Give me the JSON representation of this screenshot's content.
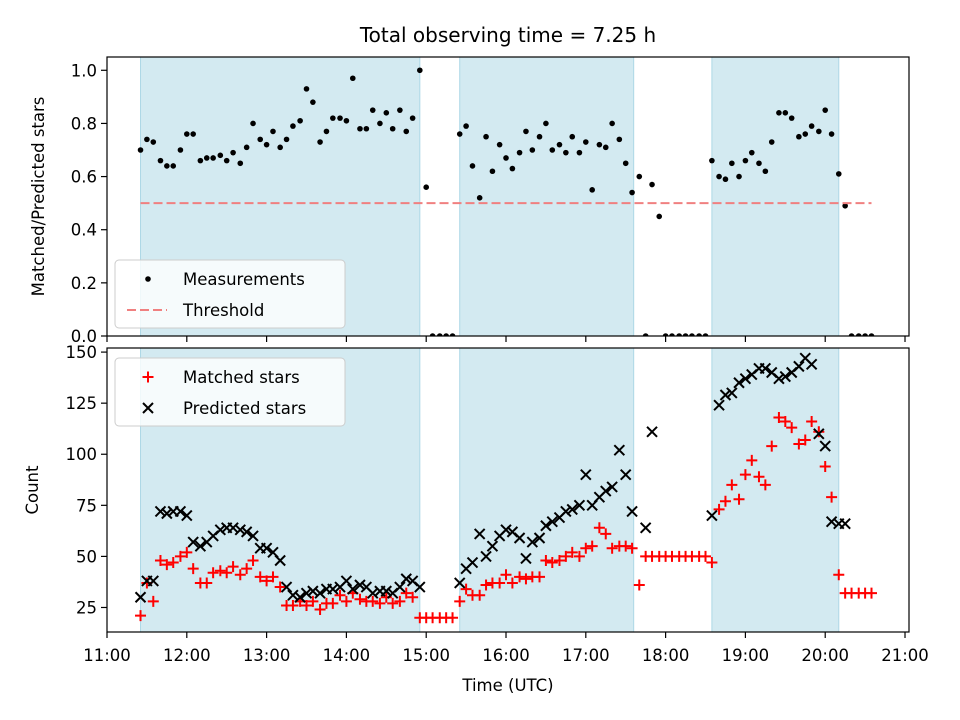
{
  "chart_data": {
    "type": "scatter",
    "title": "Total observing time = 7.25 h",
    "xlabel": "Time (UTC)",
    "x_unit": "hours UTC",
    "xlim": [
      11.0,
      21.05
    ],
    "x_ticks": [
      11,
      12,
      13,
      14,
      15,
      16,
      17,
      18,
      19,
      20,
      21
    ],
    "x_tick_labels": [
      "11:00",
      "12:00",
      "13:00",
      "14:00",
      "15:00",
      "16:00",
      "17:00",
      "18:00",
      "19:00",
      "20:00",
      "21:00"
    ],
    "shaded_intervals": [
      [
        11.42,
        14.92
      ],
      [
        15.42,
        17.6
      ],
      [
        18.58,
        20.17
      ]
    ],
    "shade_color": "#d3eaf1",
    "panels": [
      {
        "id": "ratio",
        "ylabel": "Matched/Predicted stars",
        "ylim": [
          0,
          1.05
        ],
        "y_ticks": [
          0.0,
          0.2,
          0.4,
          0.6,
          0.8,
          1.0
        ],
        "y_tick_labels": [
          "0.0",
          "0.2",
          "0.4",
          "0.6",
          "0.8",
          "1.0"
        ],
        "legend_position": "lower-left",
        "series": [
          {
            "name": "Measurements",
            "marker": "dot",
            "color": "#000000",
            "x": [
              11.42,
              11.5,
              11.58,
              11.67,
              11.75,
              11.83,
              11.92,
              12.0,
              12.08,
              12.17,
              12.25,
              12.33,
              12.42,
              12.5,
              12.58,
              12.67,
              12.75,
              12.83,
              12.92,
              13.0,
              13.08,
              13.17,
              13.25,
              13.33,
              13.42,
              13.5,
              13.58,
              13.67,
              13.75,
              13.83,
              13.92,
              14.0,
              14.08,
              14.17,
              14.25,
              14.33,
              14.42,
              14.5,
              14.58,
              14.67,
              14.75,
              14.83,
              14.92,
              15.0,
              15.08,
              15.17,
              15.25,
              15.33,
              15.42,
              15.5,
              15.58,
              15.67,
              15.75,
              15.83,
              15.92,
              16.0,
              16.08,
              16.17,
              16.25,
              16.33,
              16.42,
              16.5,
              16.58,
              16.67,
              16.75,
              16.83,
              16.92,
              17.0,
              17.08,
              17.17,
              17.25,
              17.33,
              17.42,
              17.5,
              17.58,
              17.67,
              17.75,
              17.83,
              17.92,
              18.0,
              18.08,
              18.17,
              18.25,
              18.33,
              18.42,
              18.5,
              18.58,
              18.67,
              18.75,
              18.83,
              18.92,
              19.0,
              19.08,
              19.17,
              19.25,
              19.33,
              19.42,
              19.5,
              19.58,
              19.67,
              19.75,
              19.83,
              19.92,
              20.0,
              20.08,
              20.17,
              20.25,
              20.33,
              20.42,
              20.5,
              20.58
            ],
            "y": [
              0.7,
              0.74,
              0.73,
              0.66,
              0.64,
              0.64,
              0.7,
              0.76,
              0.76,
              0.66,
              0.67,
              0.67,
              0.68,
              0.66,
              0.69,
              0.65,
              0.71,
              0.8,
              0.74,
              0.72,
              0.77,
              0.71,
              0.74,
              0.79,
              0.81,
              0.93,
              0.88,
              0.73,
              0.77,
              0.82,
              0.82,
              0.81,
              0.97,
              0.78,
              0.78,
              0.85,
              0.8,
              0.84,
              0.78,
              0.85,
              0.77,
              0.82,
              1.0,
              0.56,
              0.0,
              0.0,
              0.0,
              0.0,
              0.76,
              0.79,
              0.64,
              0.52,
              0.75,
              0.62,
              0.72,
              0.67,
              0.63,
              0.69,
              0.77,
              0.7,
              0.75,
              0.8,
              0.7,
              0.72,
              0.69,
              0.75,
              0.69,
              0.73,
              0.55,
              0.72,
              0.71,
              0.8,
              0.74,
              0.65,
              0.54,
              0.6,
              0.0,
              0.57,
              0.45,
              0.0,
              0.0,
              0.0,
              0.0,
              0.0,
              0.0,
              0.0,
              0.66,
              0.6,
              0.59,
              0.65,
              0.6,
              0.66,
              0.69,
              0.65,
              0.62,
              0.73,
              0.84,
              0.84,
              0.82,
              0.75,
              0.76,
              0.79,
              0.77,
              0.85,
              0.76,
              0.61,
              0.49,
              0.0,
              0.0,
              0.0,
              0.0
            ]
          },
          {
            "name": "Threshold",
            "marker": "dashed-line",
            "color": "#f08080",
            "x": [
              11.42,
              20.58
            ],
            "y": [
              0.5,
              0.5
            ]
          }
        ]
      },
      {
        "id": "counts",
        "ylabel": "Count",
        "ylim": [
          13,
          152
        ],
        "y_ticks": [
          25,
          50,
          75,
          100,
          125,
          150
        ],
        "y_tick_labels": [
          "25",
          "50",
          "75",
          "100",
          "125",
          "150"
        ],
        "legend_position": "upper-left",
        "series": [
          {
            "name": "Matched stars",
            "marker": "plus",
            "color": "#ff0000",
            "x": [
              11.42,
              11.5,
              11.58,
              11.67,
              11.75,
              11.83,
              11.92,
              12.0,
              12.08,
              12.17,
              12.25,
              12.33,
              12.42,
              12.5,
              12.58,
              12.67,
              12.75,
              12.83,
              12.92,
              13.0,
              13.08,
              13.17,
              13.25,
              13.33,
              13.42,
              13.5,
              13.58,
              13.67,
              13.75,
              13.83,
              13.92,
              14.0,
              14.08,
              14.17,
              14.25,
              14.33,
              14.42,
              14.5,
              14.58,
              14.67,
              14.75,
              14.83,
              14.92,
              15.0,
              15.08,
              15.17,
              15.25,
              15.33,
              15.42,
              15.5,
              15.58,
              15.67,
              15.75,
              15.83,
              15.92,
              16.0,
              16.08,
              16.17,
              16.25,
              16.33,
              16.42,
              16.5,
              16.58,
              16.67,
              16.75,
              16.83,
              16.92,
              17.0,
              17.08,
              17.17,
              17.25,
              17.33,
              17.42,
              17.5,
              17.58,
              17.67,
              17.75,
              17.83,
              17.92,
              18.0,
              18.08,
              18.17,
              18.25,
              18.33,
              18.42,
              18.5,
              18.58,
              18.67,
              18.75,
              18.83,
              18.92,
              19.0,
              19.08,
              19.17,
              19.25,
              19.33,
              19.42,
              19.5,
              19.58,
              19.67,
              19.75,
              19.83,
              19.92,
              20.0,
              20.08,
              20.17,
              20.25,
              20.33,
              20.42,
              20.5,
              20.58
            ],
            "y": [
              21,
              37,
              28,
              48,
              46,
              47,
              50,
              52,
              44,
              37,
              37,
              42,
              43,
              42,
              45,
              41,
              44,
              48,
              40,
              38,
              40,
              35,
              26,
              26,
              28,
              26,
              28,
              24,
              27,
              27,
              31,
              28,
              32,
              29,
              28,
              28,
              27,
              30,
              27,
              28,
              32,
              30,
              20,
              20,
              20,
              20,
              20,
              20,
              28,
              34,
              31,
              31,
              36,
              37,
              37,
              41,
              37,
              40,
              39,
              40,
              40,
              48,
              47,
              48,
              50,
              52,
              50,
              54,
              55,
              64,
              61,
              54,
              55,
              55,
              54,
              36,
              50,
              50,
              50,
              50,
              50,
              50,
              50,
              50,
              50,
              50,
              47,
              73,
              77,
              85,
              78,
              90,
              97,
              89,
              85,
              104,
              118,
              116,
              113,
              105,
              107,
              116,
              111,
              94,
              79,
              41,
              32,
              32,
              32,
              32,
              32
            ]
          },
          {
            "name": "Predicted stars",
            "marker": "x",
            "color": "#000000",
            "x": [
              11.42,
              11.5,
              11.58,
              11.67,
              11.75,
              11.83,
              11.92,
              12.0,
              12.08,
              12.17,
              12.25,
              12.33,
              12.42,
              12.5,
              12.58,
              12.67,
              12.75,
              12.83,
              12.92,
              13.0,
              13.08,
              13.17,
              13.25,
              13.33,
              13.42,
              13.5,
              13.58,
              13.67,
              13.75,
              13.83,
              13.92,
              14.0,
              14.08,
              14.17,
              14.25,
              14.33,
              14.42,
              14.5,
              14.58,
              14.67,
              14.75,
              14.83,
              14.92,
              15.42,
              15.5,
              15.58,
              15.67,
              15.75,
              15.83,
              15.92,
              16.0,
              16.08,
              16.17,
              16.25,
              16.33,
              16.42,
              16.5,
              16.58,
              16.67,
              16.75,
              16.83,
              16.92,
              17.0,
              17.08,
              17.17,
              17.25,
              17.33,
              17.42,
              17.5,
              17.58,
              17.75,
              17.83,
              18.58,
              18.67,
              18.75,
              18.83,
              18.92,
              19.0,
              19.08,
              19.17,
              19.25,
              19.33,
              19.42,
              19.5,
              19.58,
              19.67,
              19.75,
              19.83,
              19.92,
              20.0,
              20.08,
              20.17,
              20.25
            ],
            "y": [
              30,
              38,
              38,
              72,
              71,
              72,
              72,
              70,
              57,
              55,
              57,
              60,
              63,
              64,
              64,
              63,
              62,
              60,
              54,
              54,
              52,
              48,
              35,
              31,
              30,
              32,
              33,
              32,
              34,
              34,
              35,
              38,
              34,
              36,
              35,
              32,
              33,
              33,
              32,
              35,
              39,
              38,
              35,
              37,
              44,
              47,
              61,
              50,
              55,
              60,
              63,
              62,
              59,
              49,
              57,
              59,
              65,
              67,
              69,
              72,
              73,
              75,
              90,
              75,
              79,
              82,
              84,
              102,
              90,
              72,
              64,
              111,
              70,
              124,
              129,
              130,
              135,
              137,
              139,
              142,
              142,
              140,
              137,
              138,
              140,
              143,
              147,
              144,
              110,
              104,
              67,
              66,
              66
            ]
          }
        ]
      }
    ]
  }
}
